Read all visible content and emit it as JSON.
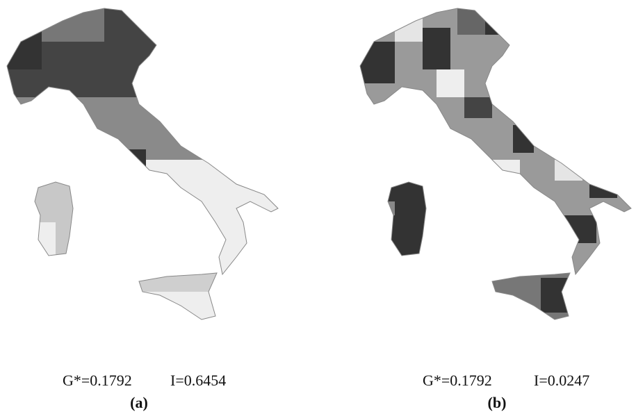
{
  "panels": [
    {
      "stats": [
        "G*=0.1792",
        "I=0.6454"
      ],
      "label": "(a)"
    },
    {
      "stats": [
        "G*=0.1792",
        "I=0.0247"
      ],
      "label": "(b)"
    }
  ]
}
